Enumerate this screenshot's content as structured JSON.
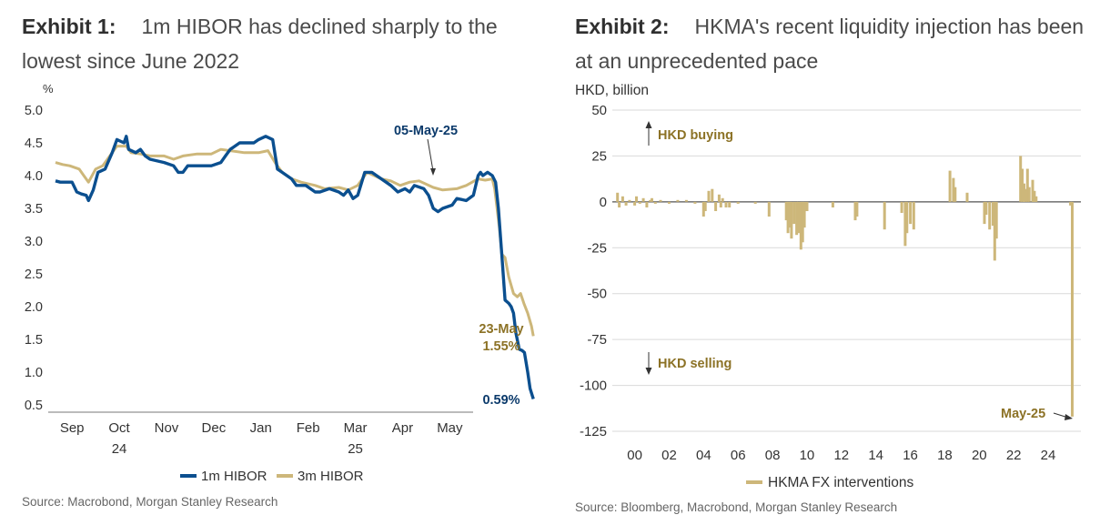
{
  "exhibit1": {
    "label": "Exhibit 1:",
    "title": "1m HIBOR has declined sharply to the lowest since June 2022",
    "source": "Source: Macrobond, Morgan Stanley Research",
    "chart_data": {
      "type": "line",
      "ylabel": "%",
      "ylim": [
        0.5,
        5.0
      ],
      "yticks": [
        "5.0",
        "4.5",
        "4.0",
        "3.5",
        "3.0",
        "2.5",
        "2.0",
        "1.5",
        "1.0",
        "0.5"
      ],
      "xticks": [
        {
          "label": "Sep",
          "sub": ""
        },
        {
          "label": "Oct",
          "sub": "24"
        },
        {
          "label": "Nov",
          "sub": ""
        },
        {
          "label": "Dec",
          "sub": ""
        },
        {
          "label": "Jan",
          "sub": ""
        },
        {
          "label": "Feb",
          "sub": ""
        },
        {
          "label": "Mar",
          "sub": "25"
        },
        {
          "label": "Apr",
          "sub": ""
        },
        {
          "label": "May",
          "sub": ""
        }
      ],
      "x_month_index": "0 = 1 Sep 2024, 9 = 1 Jun 2025",
      "series": [
        {
          "name": "1m HIBOR",
          "color": "#0b4f8f",
          "points": [
            [
              0.0,
              3.92
            ],
            [
              0.1,
              3.9
            ],
            [
              0.35,
              3.9
            ],
            [
              0.45,
              3.75
            ],
            [
              0.55,
              3.72
            ],
            [
              0.65,
              3.7
            ],
            [
              0.7,
              3.62
            ],
            [
              0.8,
              3.78
            ],
            [
              0.9,
              4.05
            ],
            [
              1.05,
              4.1
            ],
            [
              1.2,
              4.35
            ],
            [
              1.3,
              4.55
            ],
            [
              1.45,
              4.5
            ],
            [
              1.5,
              4.6
            ],
            [
              1.55,
              4.4
            ],
            [
              1.7,
              4.35
            ],
            [
              1.8,
              4.4
            ],
            [
              1.9,
              4.3
            ],
            [
              2.0,
              4.25
            ],
            [
              2.3,
              4.2
            ],
            [
              2.5,
              4.15
            ],
            [
              2.6,
              4.05
            ],
            [
              2.7,
              4.05
            ],
            [
              2.8,
              4.15
            ],
            [
              3.0,
              4.15
            ],
            [
              3.3,
              4.15
            ],
            [
              3.5,
              4.2
            ],
            [
              3.6,
              4.3
            ],
            [
              3.7,
              4.4
            ],
            [
              3.9,
              4.5
            ],
            [
              4.2,
              4.5
            ],
            [
              4.3,
              4.55
            ],
            [
              4.45,
              4.6
            ],
            [
              4.6,
              4.55
            ],
            [
              4.7,
              4.1
            ],
            [
              4.8,
              4.05
            ],
            [
              5.0,
              3.95
            ],
            [
              5.1,
              3.85
            ],
            [
              5.3,
              3.85
            ],
            [
              5.5,
              3.75
            ],
            [
              5.6,
              3.75
            ],
            [
              5.8,
              3.8
            ],
            [
              6.0,
              3.75
            ],
            [
              6.1,
              3.7
            ],
            [
              6.2,
              3.78
            ],
            [
              6.3,
              3.65
            ],
            [
              6.4,
              3.7
            ],
            [
              6.55,
              4.05
            ],
            [
              6.7,
              4.05
            ],
            [
              6.8,
              4.0
            ],
            [
              7.0,
              3.9
            ],
            [
              7.1,
              3.85
            ],
            [
              7.25,
              3.75
            ],
            [
              7.4,
              3.8
            ],
            [
              7.5,
              3.75
            ],
            [
              7.6,
              3.85
            ],
            [
              7.8,
              3.8
            ],
            [
              7.9,
              3.7
            ],
            [
              8.0,
              3.5
            ],
            [
              8.1,
              3.45
            ],
            [
              8.2,
              3.5
            ],
            [
              8.4,
              3.55
            ],
            [
              8.5,
              3.65
            ],
            [
              8.7,
              3.62
            ],
            [
              8.85,
              3.7
            ],
            [
              8.95,
              4.0
            ],
            [
              9.0,
              4.05
            ],
            [
              9.05,
              4.0
            ],
            [
              9.15,
              4.05
            ],
            [
              9.25,
              4.0
            ],
            [
              9.32,
              3.9
            ],
            [
              9.38,
              3.5
            ],
            [
              9.45,
              2.8
            ],
            [
              9.52,
              2.1
            ],
            [
              9.6,
              2.05
            ],
            [
              9.65,
              2.0
            ],
            [
              9.7,
              1.9
            ],
            [
              9.75,
              1.6
            ],
            [
              9.82,
              1.35
            ],
            [
              9.88,
              1.33
            ],
            [
              9.93,
              1.3
            ],
            [
              10.0,
              1.0
            ],
            [
              10.05,
              0.75
            ],
            [
              10.12,
              0.59
            ]
          ]
        },
        {
          "name": "3m HIBOR",
          "color": "#cdb77a",
          "points": [
            [
              0.0,
              4.2
            ],
            [
              0.15,
              4.17
            ],
            [
              0.3,
              4.15
            ],
            [
              0.5,
              4.1
            ],
            [
              0.6,
              4.0
            ],
            [
              0.7,
              3.9
            ],
            [
              0.85,
              4.1
            ],
            [
              1.0,
              4.15
            ],
            [
              1.15,
              4.3
            ],
            [
              1.3,
              4.45
            ],
            [
              1.5,
              4.45
            ],
            [
              1.6,
              4.35
            ],
            [
              1.8,
              4.33
            ],
            [
              2.0,
              4.3
            ],
            [
              2.3,
              4.3
            ],
            [
              2.5,
              4.25
            ],
            [
              2.7,
              4.3
            ],
            [
              3.0,
              4.33
            ],
            [
              3.3,
              4.33
            ],
            [
              3.5,
              4.4
            ],
            [
              3.7,
              4.38
            ],
            [
              4.0,
              4.35
            ],
            [
              4.3,
              4.35
            ],
            [
              4.5,
              4.38
            ],
            [
              4.65,
              4.2
            ],
            [
              4.8,
              4.05
            ],
            [
              5.0,
              3.95
            ],
            [
              5.2,
              3.9
            ],
            [
              5.5,
              3.85
            ],
            [
              5.7,
              3.8
            ],
            [
              6.0,
              3.82
            ],
            [
              6.2,
              3.78
            ],
            [
              6.4,
              3.85
            ],
            [
              6.6,
              4.05
            ],
            [
              6.9,
              3.95
            ],
            [
              7.1,
              3.92
            ],
            [
              7.3,
              3.85
            ],
            [
              7.5,
              3.9
            ],
            [
              7.7,
              3.92
            ],
            [
              8.0,
              3.82
            ],
            [
              8.2,
              3.78
            ],
            [
              8.5,
              3.8
            ],
            [
              8.7,
              3.85
            ],
            [
              8.95,
              3.95
            ],
            [
              9.1,
              3.93
            ],
            [
              9.25,
              3.95
            ],
            [
              9.3,
              3.8
            ],
            [
              9.4,
              3.2
            ],
            [
              9.45,
              2.8
            ],
            [
              9.52,
              2.75
            ],
            [
              9.6,
              2.45
            ],
            [
              9.7,
              2.2
            ],
            [
              9.78,
              2.15
            ],
            [
              9.85,
              2.2
            ],
            [
              9.92,
              2.05
            ],
            [
              10.0,
              1.9
            ],
            [
              10.08,
              1.7
            ],
            [
              10.12,
              1.55
            ]
          ]
        }
      ],
      "annotations": {
        "peak_date": "05-May-25",
        "end_date": "23-May",
        "end_3m": "1.55%",
        "end_1m": "0.59%"
      },
      "legend": [
        "1m HIBOR",
        "3m HIBOR"
      ],
      "legend_placement": "bottom-center",
      "grid": false
    }
  },
  "exhibit2": {
    "label": "Exhibit 2:",
    "title": "HKMA's recent liquidity injection has been at an unprecedented pace",
    "source": "Source: Bloomberg, Macrobond, Morgan Stanley Research",
    "chart_data": {
      "type": "bar",
      "ylabel": "HKD, billion",
      "ylim": [
        -125,
        50
      ],
      "yticks": [
        "50",
        "25",
        "0",
        "-25",
        "-50",
        "-75",
        "-100",
        "-125"
      ],
      "xticks": [
        "00",
        "02",
        "04",
        "06",
        "08",
        "10",
        "12",
        "14",
        "16",
        "18",
        "20",
        "22",
        "24"
      ],
      "x_range_years": [
        1998.7,
        2025.9
      ],
      "series": [
        {
          "name": "HKMA FX interventions",
          "color": "#cdb77a",
          "bars": [
            [
              1999.0,
              5
            ],
            [
              1999.1,
              -3
            ],
            [
              1999.3,
              3
            ],
            [
              1999.5,
              -2
            ],
            [
              1999.7,
              1
            ],
            [
              2000.0,
              -2
            ],
            [
              2000.1,
              3
            ],
            [
              2000.3,
              -1
            ],
            [
              2000.5,
              2
            ],
            [
              2000.7,
              -3
            ],
            [
              2000.9,
              1
            ],
            [
              2001.0,
              2
            ],
            [
              2001.2,
              -1
            ],
            [
              2001.5,
              1
            ],
            [
              2002.0,
              -1
            ],
            [
              2002.5,
              1
            ],
            [
              2003.0,
              1
            ],
            [
              2003.5,
              -1
            ],
            [
              2004.0,
              -8
            ],
            [
              2004.1,
              -5
            ],
            [
              2004.3,
              6
            ],
            [
              2004.5,
              7
            ],
            [
              2004.7,
              -5
            ],
            [
              2004.9,
              4
            ],
            [
              2005.0,
              -3
            ],
            [
              2005.1,
              2
            ],
            [
              2005.3,
              -3
            ],
            [
              2005.5,
              -3
            ],
            [
              2006.0,
              -1
            ],
            [
              2007.0,
              -1
            ],
            [
              2007.8,
              -8
            ],
            [
              2008.8,
              -10
            ],
            [
              2008.9,
              -17
            ],
            [
              2009.0,
              -14
            ],
            [
              2009.1,
              -20
            ],
            [
              2009.25,
              -12
            ],
            [
              2009.4,
              -18
            ],
            [
              2009.5,
              -17
            ],
            [
              2009.65,
              -26
            ],
            [
              2009.75,
              -22
            ],
            [
              2009.85,
              -14
            ],
            [
              2010.0,
              -5
            ],
            [
              2011.5,
              -3
            ],
            [
              2012.8,
              -10
            ],
            [
              2012.9,
              -8
            ],
            [
              2014.5,
              -15
            ],
            [
              2015.5,
              -6
            ],
            [
              2015.7,
              -24
            ],
            [
              2015.8,
              -17
            ],
            [
              2016.0,
              -12
            ],
            [
              2016.2,
              -15
            ],
            [
              2018.3,
              17
            ],
            [
              2018.5,
              13
            ],
            [
              2018.6,
              8
            ],
            [
              2019.3,
              5
            ],
            [
              2020.3,
              -12
            ],
            [
              2020.4,
              -7
            ],
            [
              2020.6,
              -15
            ],
            [
              2020.8,
              -13
            ],
            [
              2020.9,
              -32
            ],
            [
              2021.0,
              -20
            ],
            [
              2022.4,
              25
            ],
            [
              2022.5,
              18
            ],
            [
              2022.6,
              10
            ],
            [
              2022.7,
              7
            ],
            [
              2022.8,
              18
            ],
            [
              2022.9,
              8
            ],
            [
              2023.1,
              12
            ],
            [
              2023.2,
              6
            ],
            [
              2023.3,
              3
            ],
            [
              2025.3,
              -2
            ],
            [
              2025.4,
              -117
            ]
          ]
        }
      ],
      "annotations": {
        "buying": "HKD buying",
        "selling": "HKD selling",
        "latest": "May-25"
      },
      "legend": [
        "HKMA FX interventions"
      ],
      "legend_placement": "bottom-center",
      "grid": true
    }
  }
}
